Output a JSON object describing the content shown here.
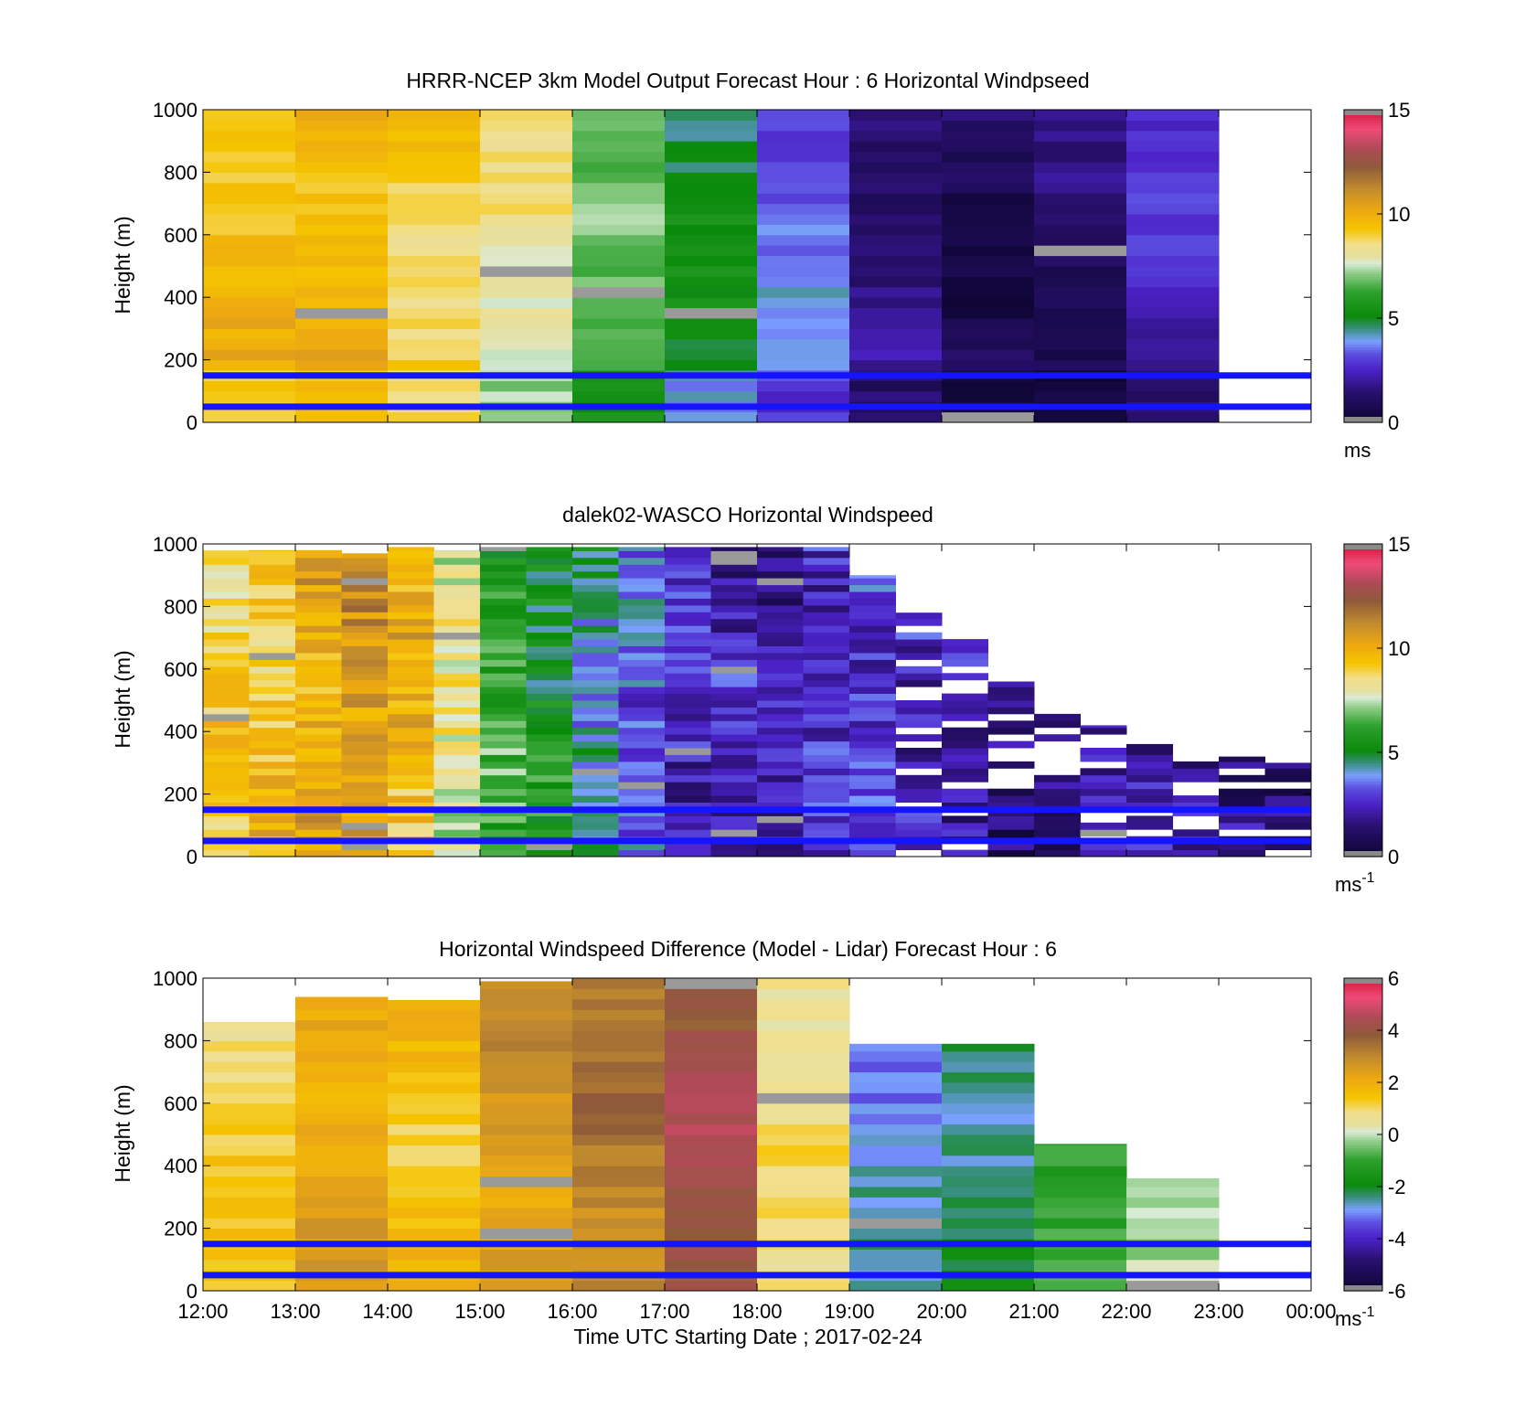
{
  "figure": {
    "xlabel": "Time UTC  Starting Date ; 2017-02-24",
    "x_tick_labels": [
      "12:00",
      "13:00",
      "14:00",
      "15:00",
      "16:00",
      "17:00",
      "18:00",
      "19:00",
      "20:00",
      "21:00",
      "22:00",
      "23:00",
      "00:00"
    ],
    "reference_heights_m": [
      150,
      50
    ]
  },
  "chart_data": [
    {
      "type": "heatmap",
      "title": "HRRR-NCEP 3km Model Output   Forecast Hour : 6 Horizontal Windpseed",
      "ylabel": "Height (m)",
      "ylim": [
        0,
        1000
      ],
      "y_ticks": [
        0,
        200,
        400,
        600,
        800,
        1000
      ],
      "x_range_hours_utc": [
        12,
        24
      ],
      "colorbar": {
        "min": 0,
        "max": 15,
        "ticks": [
          0,
          5,
          10,
          15
        ],
        "unit": "ms",
        "unit_sup": ""
      },
      "columns": [
        {
          "hour": 12,
          "base": 9.6,
          "top": 1000
        },
        {
          "hour": 13,
          "base": 9.8,
          "top": 1000
        },
        {
          "hour": 14,
          "base": 9.0,
          "top": 1000
        },
        {
          "hour": 15,
          "base": 8.2,
          "top": 1000
        },
        {
          "hour": 16,
          "base": 6.6,
          "top": 1000
        },
        {
          "hour": 17,
          "base": 5.0,
          "top": 1000
        },
        {
          "hour": 18,
          "base": 3.6,
          "top": 1000
        },
        {
          "hour": 19,
          "base": 1.6,
          "top": 1000
        },
        {
          "hour": 20,
          "base": 0.9,
          "top": 1000
        },
        {
          "hour": 21,
          "base": 1.3,
          "top": 1000
        },
        {
          "hour": 22,
          "base": 2.6,
          "top": 1000
        }
      ]
    },
    {
      "type": "heatmap",
      "title": "dalek02-WASCO  Horizontal Windspeed",
      "ylabel": "Height (m)",
      "ylim": [
        0,
        1000
      ],
      "y_ticks": [
        0,
        200,
        400,
        600,
        800,
        1000
      ],
      "x_range_hours_utc": [
        12,
        24
      ],
      "colorbar": {
        "min": 0,
        "max": 15,
        "ticks": [
          0,
          5,
          10,
          15
        ],
        "unit": "ms",
        "unit_sup": "-1"
      },
      "columns": [
        {
          "hour": 12.0,
          "base": 9.0,
          "top": 980
        },
        {
          "hour": 12.5,
          "base": 9.5,
          "top": 980
        },
        {
          "hour": 13.0,
          "base": 10.2,
          "top": 980
        },
        {
          "hour": 13.5,
          "base": 10.6,
          "top": 970
        },
        {
          "hour": 14.0,
          "base": 9.8,
          "top": 990
        },
        {
          "hour": 14.5,
          "base": 8.0,
          "top": 980
        },
        {
          "hour": 15.0,
          "base": 6.2,
          "top": 990
        },
        {
          "hour": 15.5,
          "base": 5.4,
          "top": 990
        },
        {
          "hour": 16.0,
          "base": 4.4,
          "top": 990
        },
        {
          "hour": 16.5,
          "base": 3.4,
          "top": 990
        },
        {
          "hour": 17.0,
          "base": 2.6,
          "top": 990
        },
        {
          "hour": 17.5,
          "base": 2.2,
          "top": 990
        },
        {
          "hour": 18.0,
          "base": 2.0,
          "top": 990
        },
        {
          "hour": 18.5,
          "base": 2.6,
          "top": 990
        },
        {
          "hour": 19.0,
          "base": 3.0,
          "top": 900
        },
        {
          "hour": 19.5,
          "base": 2.6,
          "top": 780
        },
        {
          "hour": 20.0,
          "base": 2.2,
          "top": 700
        },
        {
          "hour": 20.5,
          "base": 1.6,
          "top": 560
        },
        {
          "hour": 21.0,
          "base": 1.6,
          "top": 470
        },
        {
          "hour": 21.5,
          "base": 1.8,
          "top": 420
        },
        {
          "hour": 22.0,
          "base": 2.0,
          "top": 360
        },
        {
          "hour": 22.5,
          "base": 2.0,
          "top": 330
        },
        {
          "hour": 23.0,
          "base": 2.0,
          "top": 320
        },
        {
          "hour": 23.5,
          "base": 1.8,
          "top": 300
        }
      ]
    },
    {
      "type": "heatmap",
      "title": "Horizontal Windspeed Difference (Model - Lidar) Forecast Hour : 6",
      "ylabel": "Height (m)",
      "ylim": [
        0,
        1000
      ],
      "y_ticks": [
        0,
        200,
        400,
        600,
        800,
        1000
      ],
      "x_range_hours_utc": [
        12,
        24
      ],
      "colorbar": {
        "min": -6,
        "max": 6,
        "ticks": [
          -6,
          -4,
          -2,
          0,
          2,
          4,
          6
        ],
        "unit": "ms",
        "unit_sup": "-1"
      },
      "columns": [
        {
          "hour": 12,
          "base": 1.2,
          "top": 860
        },
        {
          "hour": 13,
          "base": 2.2,
          "top": 940
        },
        {
          "hour": 14,
          "base": 1.6,
          "top": 930
        },
        {
          "hour": 15,
          "base": 2.6,
          "top": 990
        },
        {
          "hour": 16,
          "base": 3.2,
          "top": 1000
        },
        {
          "hour": 17,
          "base": 4.2,
          "top": 1000
        },
        {
          "hour": 18,
          "base": 0.8,
          "top": 1000
        },
        {
          "hour": 19,
          "base": -2.8,
          "top": 790
        },
        {
          "hour": 20,
          "base": -2.2,
          "top": 790
        },
        {
          "hour": 21,
          "base": -0.8,
          "top": 470
        },
        {
          "hour": 22,
          "base": 0.2,
          "top": 360
        }
      ]
    }
  ]
}
